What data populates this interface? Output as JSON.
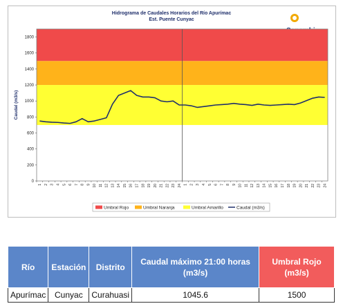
{
  "chart_data": {
    "type": "line",
    "title": "Hidrograma de Caudales Horarios del Río Apurímac",
    "subtitle": "Est. Puente Cunyac",
    "ylabel": "Caudal (m3/s)",
    "xlabel": "",
    "ylim": [
      0,
      1900
    ],
    "yticks": [
      0,
      200,
      400,
      600,
      800,
      1000,
      1200,
      1400,
      1600,
      1800
    ],
    "x_ticks": [
      "1",
      "2",
      "3",
      "4",
      "5",
      "6",
      "7",
      "8",
      "9",
      "10",
      "11",
      "12",
      "13",
      "14",
      "15",
      "16",
      "17",
      "18",
      "19",
      "20",
      "21",
      "22",
      "23",
      "24",
      "1",
      "2",
      "3",
      "4",
      "5",
      "6",
      "7",
      "8",
      "9",
      "10",
      "11",
      "12",
      "13",
      "14",
      "15",
      "16",
      "17",
      "18",
      "19",
      "20",
      "21",
      "22",
      "23",
      "24"
    ],
    "bands": [
      {
        "name": "Umbral Rojo",
        "from": 1500,
        "to": 1900,
        "color": "#f04a4a"
      },
      {
        "name": "Umbral Naranja",
        "from": 1200,
        "to": 1500,
        "color": "#ffb31a"
      },
      {
        "name": "Umbral Amarillo",
        "from": 700,
        "to": 1200,
        "color": "#ffff33"
      }
    ],
    "series": [
      {
        "name": "Caudal (m3/s)",
        "color": "#1f2f6b",
        "values": [
          750,
          740,
          735,
          732,
          725,
          720,
          740,
          780,
          740,
          750,
          770,
          790,
          960,
          1070,
          1100,
          1130,
          1070,
          1050,
          1050,
          1040,
          1000,
          990,
          1000,
          950,
          950,
          940,
          920,
          930,
          940,
          950,
          955,
          960,
          970,
          960,
          955,
          945,
          960,
          950,
          945,
          950,
          955,
          960,
          955,
          975,
          1005,
          1035,
          1050,
          1045
        ]
      }
    ],
    "legend": "bottom",
    "grid": false
  },
  "logo": {
    "text": "Senamhi"
  },
  "table": {
    "headers": [
      "Río",
      "Estación",
      "Distrito",
      "Caudal máximo 21:00 horas (m3/s)",
      "Umbral Rojo (m3/s)"
    ],
    "row": [
      "Apurímac",
      "Cunyac",
      "Curahuasi",
      "1045.6",
      "1500"
    ]
  },
  "colors": {
    "header_blue": "#5b86c9",
    "header_red": "#f25c5c",
    "line": "#1f2f6b"
  }
}
